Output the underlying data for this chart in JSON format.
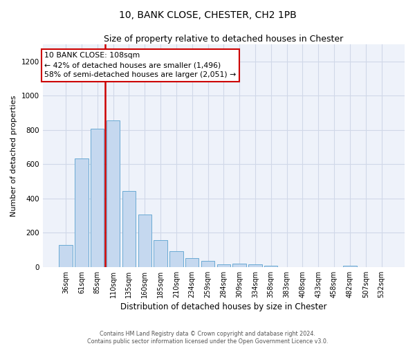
{
  "title1": "10, BANK CLOSE, CHESTER, CH2 1PB",
  "title2": "Size of property relative to detached houses in Chester",
  "xlabel": "Distribution of detached houses by size in Chester",
  "ylabel": "Number of detached properties",
  "categories": [
    "36sqm",
    "61sqm",
    "85sqm",
    "110sqm",
    "135sqm",
    "160sqm",
    "185sqm",
    "210sqm",
    "234sqm",
    "259sqm",
    "284sqm",
    "309sqm",
    "334sqm",
    "358sqm",
    "383sqm",
    "408sqm",
    "433sqm",
    "458sqm",
    "482sqm",
    "507sqm",
    "532sqm"
  ],
  "values": [
    130,
    635,
    808,
    855,
    443,
    305,
    157,
    93,
    50,
    37,
    15,
    18,
    17,
    9,
    0,
    0,
    0,
    0,
    9,
    0,
    0
  ],
  "bar_color": "#c5d8ef",
  "bar_edge_color": "#6aaad4",
  "vline_color": "#cc0000",
  "vline_x_index": 3,
  "annotation_line1": "10 BANK CLOSE: 108sqm",
  "annotation_line2": "← 42% of detached houses are smaller (1,496)",
  "annotation_line3": "58% of semi-detached houses are larger (2,051) →",
  "ylim": [
    0,
    1300
  ],
  "yticks": [
    0,
    200,
    400,
    600,
    800,
    1000,
    1200
  ],
  "grid_color": "#d0d8e8",
  "bg_color": "#eef2fa",
  "title1_fontsize": 10,
  "title2_fontsize": 9,
  "xlabel_fontsize": 8.5,
  "ylabel_fontsize": 8,
  "tick_fontsize": 7,
  "footer1": "Contains HM Land Registry data © Crown copyright and database right 2024.",
  "footer2": "Contains public sector information licensed under the Open Government Licence v3.0."
}
